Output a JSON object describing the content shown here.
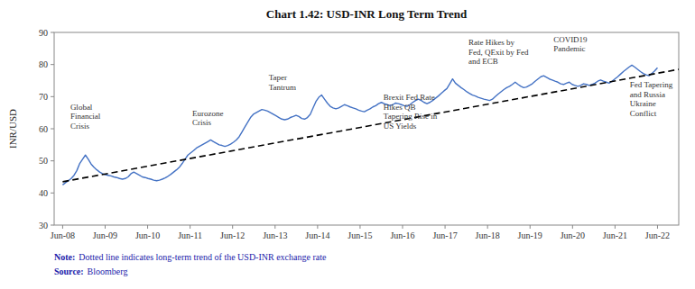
{
  "chart_data": {
    "type": "line",
    "title": "Chart 1.42: USD-INR Long Term Trend",
    "y_label": "INR/USD",
    "xlim": [
      -0.2,
      14.5
    ],
    "xticks": [
      {
        "value": 0,
        "label": "Jun-08"
      },
      {
        "value": 1,
        "label": "Jun-09"
      },
      {
        "value": 2,
        "label": "Jun-10"
      },
      {
        "value": 3,
        "label": "Jun-11"
      },
      {
        "value": 4,
        "label": "Jun-12"
      },
      {
        "value": 5,
        "label": "Jun-13"
      },
      {
        "value": 6,
        "label": "Jun-14"
      },
      {
        "value": 7,
        "label": "Jun-15"
      },
      {
        "value": 8,
        "label": "Jun-16"
      },
      {
        "value": 9,
        "label": "Jun-17"
      },
      {
        "value": 10,
        "label": "Jun-18"
      },
      {
        "value": 11,
        "label": "Jun-19"
      },
      {
        "value": 12,
        "label": "Jun-20"
      },
      {
        "value": 13,
        "label": "Jun-21"
      },
      {
        "value": 14,
        "label": "Jun-22"
      }
    ],
    "ylim": [
      30,
      90
    ],
    "yticks": [
      30,
      40,
      50,
      60,
      70,
      80,
      90
    ],
    "grid": false,
    "series": [
      {
        "color": "#4472c4",
        "line_style": "solid",
        "x": [
          0,
          0.067,
          0.134,
          0.201,
          0.2679,
          0.3349,
          0.4019,
          0.4689,
          0.5359,
          0.6029,
          0.6699,
          0.7368,
          0.8038,
          0.8708,
          0.9378,
          1.0048,
          1.0718,
          1.1388,
          1.2057,
          1.2727,
          1.3397,
          1.4067,
          1.4737,
          1.5407,
          1.6077,
          1.6746,
          1.7416,
          1.8086,
          1.8756,
          1.9426,
          2.0096,
          2.0766,
          2.1435,
          2.2105,
          2.2775,
          2.3445,
          2.4115,
          2.4785,
          2.5455,
          2.6124,
          2.6794,
          2.7464,
          2.8134,
          2.8804,
          2.9474,
          3.0144,
          3.0813,
          3.1483,
          3.2153,
          3.2823,
          3.3493,
          3.4163,
          3.4833,
          3.5502,
          3.6172,
          3.6842,
          3.7512,
          3.8182,
          3.8852,
          3.9522,
          4.0191,
          4.0861,
          4.1531,
          4.2201,
          4.2871,
          4.3541,
          4.4211,
          4.488,
          4.555,
          4.622,
          4.689,
          4.756,
          4.823,
          4.89,
          4.9569,
          5.0239,
          5.0909,
          5.1579,
          5.2249,
          5.2919,
          5.3589,
          5.4258,
          5.4928,
          5.5598,
          5.6268,
          5.6938,
          5.7608,
          5.8278,
          5.8947,
          5.9617,
          6.0287,
          6.0957,
          6.1627,
          6.2297,
          6.2967,
          6.3636,
          6.4306,
          6.4976,
          6.5646,
          6.6316,
          6.6986,
          6.7656,
          6.8325,
          6.8995,
          6.9665,
          7.0335,
          7.1005,
          7.1675,
          7.2344,
          7.3014,
          7.3684,
          7.4354,
          7.5024,
          7.5694,
          7.6364,
          7.7033,
          7.7703,
          7.8373,
          7.9043,
          7.9713,
          8.0383,
          8.1053,
          8.1722,
          8.2392,
          8.3062,
          8.3732,
          8.4402,
          8.5072,
          8.5742,
          8.6411,
          8.7081,
          8.7751,
          8.8421,
          8.9091,
          8.9761,
          9.0431,
          9.11,
          9.177,
          9.244,
          9.311,
          9.378,
          9.445,
          9.512,
          9.5789,
          9.6459,
          9.7129,
          9.7799,
          9.8469,
          9.9139,
          9.9809,
          10.0478,
          10.1148,
          10.1818,
          10.2488,
          10.3158,
          10.3828,
          10.4498,
          10.5167,
          10.5837,
          10.6507,
          10.7177,
          10.7847,
          10.8517,
          10.9187,
          10.9856,
          11.0526,
          11.1196,
          11.1866,
          11.2536,
          11.3206,
          11.3876,
          11.4545,
          11.5215,
          11.5885,
          11.6555,
          11.7225,
          11.7895,
          11.8565,
          11.9234,
          11.9904,
          12.0574,
          12.1244,
          12.1914,
          12.2584,
          12.3254,
          12.3923,
          12.4593,
          12.5263,
          12.5933,
          12.6603,
          12.7273,
          12.7943,
          12.8612,
          12.9282,
          12.9952,
          13.0622,
          13.1292,
          13.1962,
          13.2632,
          13.3301,
          13.3971,
          13.4641,
          13.5311,
          13.5981,
          13.6651,
          13.7321,
          13.799,
          13.866,
          13.933,
          14
        ],
        "values": [
          42.5,
          43.2,
          43.8,
          44.5,
          45.5,
          47.0,
          49.2,
          50.5,
          51.8,
          50.5,
          49.0,
          48.0,
          47.2,
          46.5,
          46.0,
          45.7,
          45.5,
          45.3,
          45.0,
          44.8,
          44.5,
          44.3,
          44.5,
          45.0,
          46.0,
          46.5,
          46.0,
          45.5,
          45.0,
          44.8,
          44.5,
          44.3,
          44.0,
          43.8,
          44.0,
          44.3,
          44.7,
          45.2,
          45.8,
          46.5,
          47.2,
          48.0,
          49.2,
          50.5,
          51.8,
          52.5,
          53.2,
          54.0,
          54.5,
          55.0,
          55.5,
          56.0,
          56.5,
          56.0,
          55.5,
          55.0,
          54.8,
          54.5,
          54.8,
          55.2,
          55.8,
          56.5,
          57.5,
          59.0,
          60.5,
          62.0,
          63.5,
          64.5,
          65.0,
          65.5,
          66.0,
          65.8,
          65.5,
          65.0,
          64.5,
          64.0,
          63.5,
          63.0,
          62.8,
          63.0,
          63.5,
          63.8,
          64.2,
          63.8,
          63.2,
          63.0,
          63.5,
          64.5,
          66.5,
          68.5,
          69.8,
          70.5,
          69.2,
          68.0,
          67.0,
          66.5,
          66.2,
          66.5,
          67.0,
          67.5,
          67.2,
          66.8,
          66.5,
          66.2,
          65.8,
          65.5,
          65.3,
          65.8,
          66.2,
          66.8,
          67.2,
          67.8,
          68.2,
          67.8,
          67.5,
          67.2,
          67.5,
          68.0,
          67.8,
          67.5,
          67.2,
          67.0,
          67.5,
          68.2,
          68.8,
          69.2,
          68.8,
          68.2,
          67.8,
          68.2,
          68.8,
          69.5,
          70.2,
          71.0,
          71.8,
          72.5,
          74.0,
          75.5,
          74.2,
          73.5,
          72.8,
          72.2,
          71.5,
          71.0,
          70.5,
          70.2,
          69.8,
          69.5,
          69.2,
          69.0,
          68.8,
          69.2,
          70.0,
          70.8,
          71.5,
          72.2,
          72.8,
          73.2,
          73.8,
          74.5,
          73.8,
          73.2,
          72.8,
          73.0,
          73.5,
          74.0,
          74.8,
          75.5,
          76.2,
          76.5,
          76.0,
          75.5,
          75.2,
          74.8,
          74.5,
          74.0,
          73.8,
          74.2,
          74.5,
          73.8,
          73.5,
          73.2,
          73.5,
          74.0,
          73.8,
          73.5,
          73.8,
          74.2,
          74.8,
          75.2,
          74.8,
          74.5,
          74.2,
          74.8,
          75.5,
          76.2,
          77.0,
          77.8,
          78.5,
          79.2,
          79.8,
          79.2,
          78.5,
          77.8,
          77.2,
          76.8,
          76.5,
          77.2,
          78.0,
          79.0
        ]
      },
      {
        "color": "#000000",
        "line_style": "dashed",
        "x": [
          0,
          14.5
        ],
        "values": [
          43.5,
          78.5
        ]
      }
    ],
    "annotations": [
      {
        "label": "Global\nFinancial\nCrisis",
        "x": 0.18,
        "y": 59.5
      },
      {
        "label": "Eurozone\nCrisis",
        "x": 3.05,
        "y": 60.5
      },
      {
        "label": "Taper\nTantrum",
        "x": 4.85,
        "y": 71.5
      },
      {
        "label": "Brexit Fed Rate\nHikes QB\nTapering Rise in\nUS Yields",
        "x": 7.55,
        "y": 59.5
      },
      {
        "label": "Rate Hikes by\nFed, QExit by Fed\nand ECB",
        "x": 9.55,
        "y": 79.5
      },
      {
        "label": "COVID19\nPandemic",
        "x": 11.55,
        "y": 83.5
      },
      {
        "label": "Fed Tapering\nand Russia\nUkraine\nConflict",
        "x": 13.35,
        "y": 63.5
      }
    ],
    "note_label": "Note:",
    "note": "Dotted line indicates long-term trend of the USD-INR exchange rate",
    "source_label": "Source:",
    "source": "Bloomberg"
  }
}
